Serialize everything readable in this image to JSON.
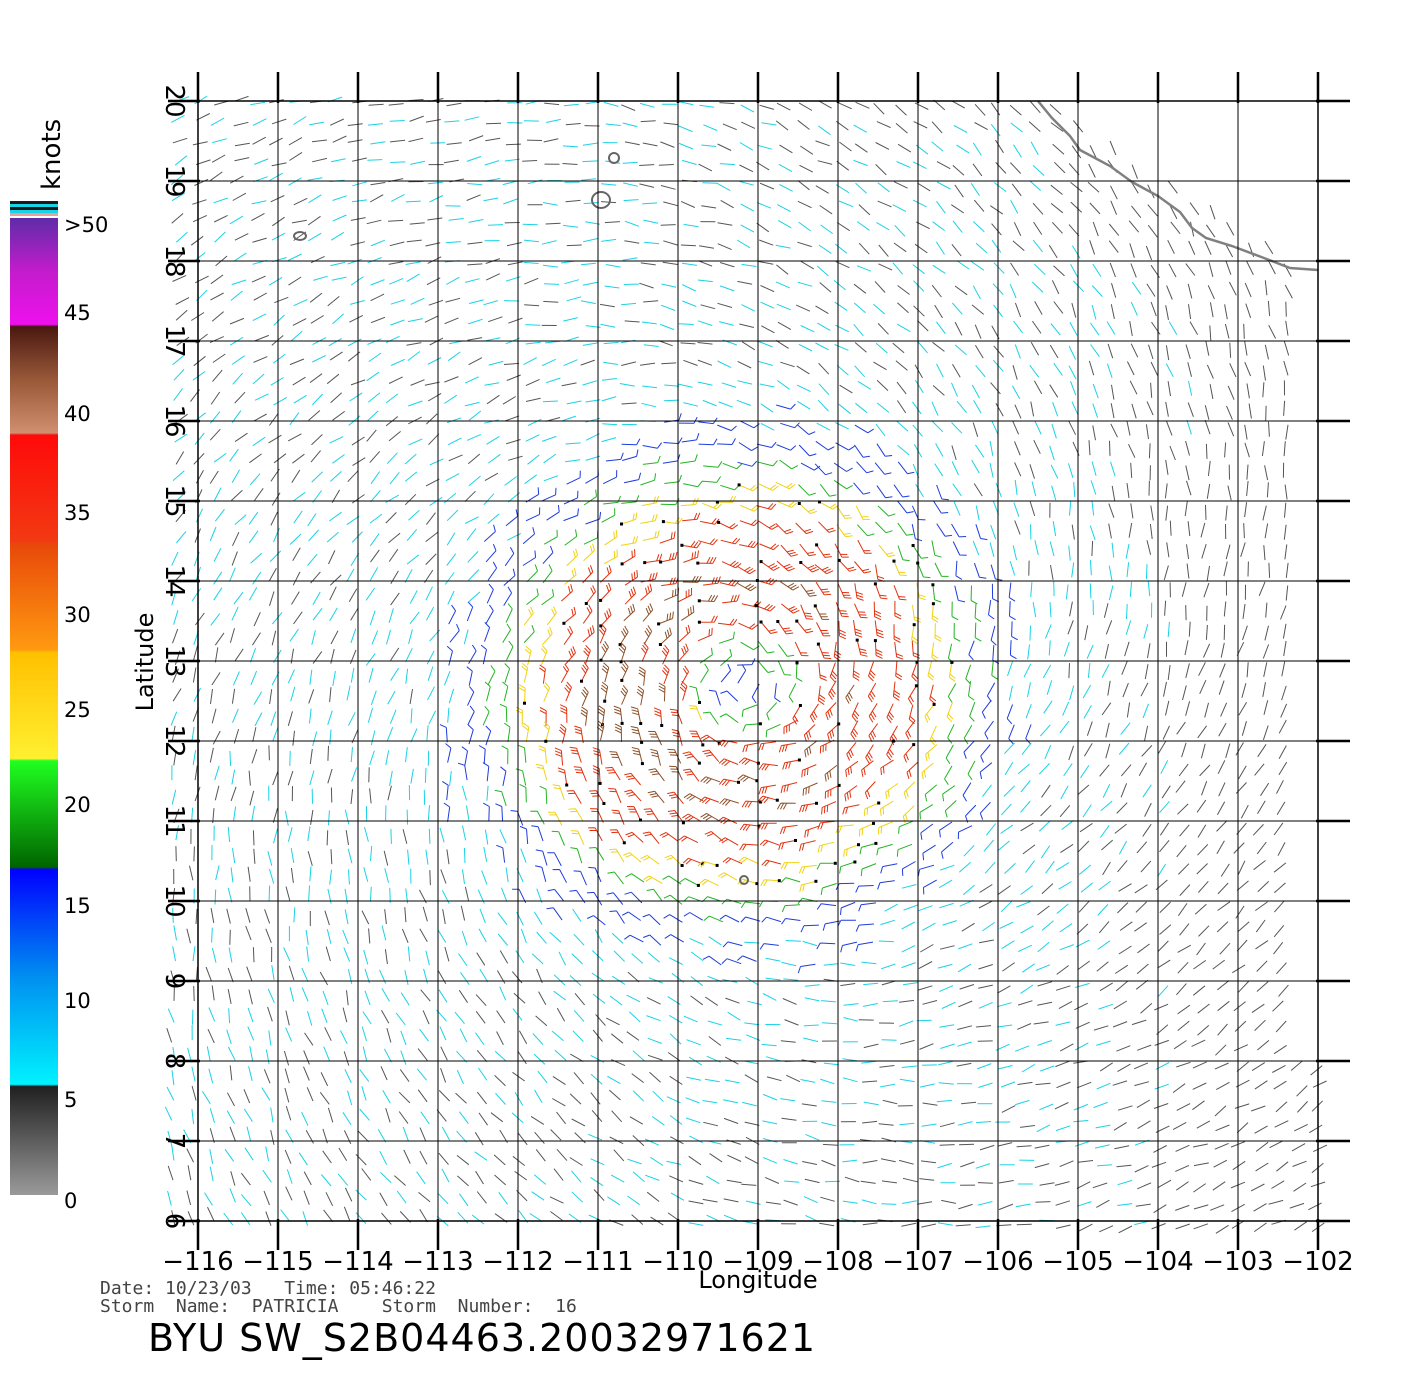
{
  "map": {
    "x_axis": {
      "label": "Longitude",
      "min": -116,
      "max": -102,
      "ticks": [
        -116,
        -115,
        -114,
        -113,
        -112,
        -111,
        -110,
        -109,
        -108,
        -107,
        -106,
        -105,
        -104,
        -103,
        -102
      ],
      "tick_labels": [
        "−116",
        "−115",
        "−114",
        "−113",
        "−112",
        "−111",
        "−110",
        "−109",
        "−108",
        "−107",
        "−106",
        "−105",
        "−104",
        "−103",
        "−102"
      ]
    },
    "y_axis": {
      "label": "Latitude",
      "min": 6,
      "max": 20,
      "ticks": [
        6,
        7,
        8,
        9,
        10,
        11,
        12,
        13,
        14,
        15,
        16,
        17,
        18,
        19,
        20
      ],
      "tick_labels": [
        "6",
        "7",
        "8",
        "9",
        "10",
        "11",
        "12",
        "13",
        "14",
        "15",
        "16",
        "17",
        "18",
        "19",
        "20"
      ]
    },
    "grid": true,
    "storm_center": {
      "lon": -109.2,
      "lat": 12.7
    }
  },
  "colorbar": {
    "title": "knots",
    "labels": [
      ">50",
      "45",
      "40",
      "35",
      "30",
      "25",
      "20",
      "15",
      "10",
      "5",
      "0"
    ],
    "colors": {
      "calm": "#555555",
      "light": "#19d2e6",
      "moderate": "#1e3cdc",
      "fresh": "#22b422",
      "strong": "#f0d214",
      "gale": "#e1320f",
      "storm": "#8c5028"
    }
  },
  "info": {
    "line1": "Date: 10/23/03   Time: 05:46:22",
    "line2": "Storm  Name:  PATRICIA    Storm  Number:  16",
    "product": "BYU  SW_S2B04463.20032971621"
  }
}
